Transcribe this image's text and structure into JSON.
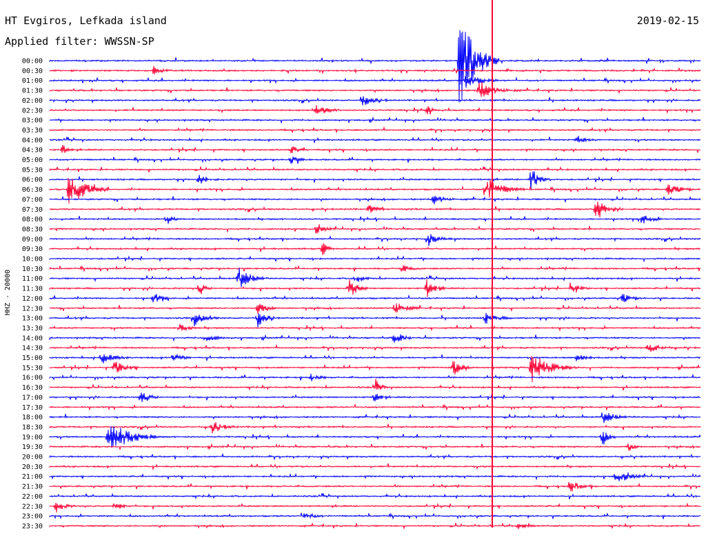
{
  "header": {
    "station": "HT Evgiros, Lefkada island",
    "date": "2019-02-15",
    "filter": "Applied filter: WWSSN-SP"
  },
  "colors": {
    "even": "#0000ff",
    "odd": "#ff0033",
    "frame": "#000000"
  },
  "chart_data": {
    "type": "line",
    "title": "HT Evgiros, Lefkada island",
    "subtitle": "Applied filter: WWSSN-SP",
    "ylabel": "HHZ - 20000",
    "xlabel": "",
    "grid": false,
    "legend": "none",
    "row_minutes": 30,
    "rows": [
      "00:00",
      "00:30",
      "01:00",
      "01:30",
      "02:00",
      "02:30",
      "03:00",
      "03:30",
      "04:00",
      "04:30",
      "05:00",
      "05:30",
      "06:00",
      "06:30",
      "07:00",
      "07:30",
      "08:00",
      "08:30",
      "09:00",
      "09:30",
      "10:00",
      "10:30",
      "11:00",
      "11:30",
      "12:00",
      "12:30",
      "13:00",
      "13:30",
      "14:00",
      "14:30",
      "15:00",
      "15:30",
      "16:00",
      "16:30",
      "17:00",
      "17:30",
      "18:00",
      "18:30",
      "19:00",
      "19:30",
      "20:00",
      "20:30",
      "21:00",
      "21:30",
      "22:00",
      "22:30",
      "23:00",
      "23:30"
    ],
    "series_colors": [
      "#0000ff",
      "#ff0033"
    ],
    "events": [
      {
        "row": 0,
        "t": 0.63,
        "amp": 80,
        "dur": 0.06
      },
      {
        "row": 1,
        "t": 0.16,
        "amp": 6,
        "dur": 0.03
      },
      {
        "row": 2,
        "t": 0.64,
        "amp": 10,
        "dur": 0.05
      },
      {
        "row": 3,
        "t": 0.66,
        "amp": 14,
        "dur": 0.06
      },
      {
        "row": 4,
        "t": 0.48,
        "amp": 9,
        "dur": 0.04
      },
      {
        "row": 5,
        "t": 0.41,
        "amp": 8,
        "dur": 0.04
      },
      {
        "row": 5,
        "t": 0.58,
        "amp": 6,
        "dur": 0.03
      },
      {
        "row": 8,
        "t": 0.81,
        "amp": 6,
        "dur": 0.03
      },
      {
        "row": 9,
        "t": 0.02,
        "amp": 7,
        "dur": 0.02
      },
      {
        "row": 9,
        "t": 0.37,
        "amp": 6,
        "dur": 0.03
      },
      {
        "row": 10,
        "t": 0.37,
        "amp": 7,
        "dur": 0.03
      },
      {
        "row": 12,
        "t": 0.23,
        "amp": 8,
        "dur": 0.03
      },
      {
        "row": 12,
        "t": 0.74,
        "amp": 18,
        "dur": 0.03
      },
      {
        "row": 13,
        "t": 0.03,
        "amp": 28,
        "dur": 0.06
      },
      {
        "row": 13,
        "t": 0.67,
        "amp": 20,
        "dur": 0.06
      },
      {
        "row": 13,
        "t": 0.95,
        "amp": 10,
        "dur": 0.04
      },
      {
        "row": 14,
        "t": 0.59,
        "amp": 8,
        "dur": 0.04
      },
      {
        "row": 15,
        "t": 0.49,
        "amp": 7,
        "dur": 0.03
      },
      {
        "row": 15,
        "t": 0.84,
        "amp": 14,
        "dur": 0.04
      },
      {
        "row": 16,
        "t": 0.18,
        "amp": 8,
        "dur": 0.02
      },
      {
        "row": 16,
        "t": 0.91,
        "amp": 10,
        "dur": 0.03
      },
      {
        "row": 17,
        "t": 0.41,
        "amp": 6,
        "dur": 0.03
      },
      {
        "row": 18,
        "t": 0.58,
        "amp": 9,
        "dur": 0.04
      },
      {
        "row": 19,
        "t": 0.42,
        "amp": 10,
        "dur": 0.02
      },
      {
        "row": 21,
        "t": 0.54,
        "amp": 7,
        "dur": 0.03
      },
      {
        "row": 22,
        "t": 0.29,
        "amp": 16,
        "dur": 0.05
      },
      {
        "row": 22,
        "t": 0.47,
        "amp": 6,
        "dur": 0.03
      },
      {
        "row": 23,
        "t": 0.23,
        "amp": 12,
        "dur": 0.02
      },
      {
        "row": 23,
        "t": 0.46,
        "amp": 16,
        "dur": 0.03
      },
      {
        "row": 23,
        "t": 0.58,
        "amp": 14,
        "dur": 0.03
      },
      {
        "row": 23,
        "t": 0.8,
        "amp": 9,
        "dur": 0.03
      },
      {
        "row": 24,
        "t": 0.16,
        "amp": 8,
        "dur": 0.03
      },
      {
        "row": 24,
        "t": 0.88,
        "amp": 7,
        "dur": 0.03
      },
      {
        "row": 25,
        "t": 0.32,
        "amp": 10,
        "dur": 0.03
      },
      {
        "row": 25,
        "t": 0.53,
        "amp": 12,
        "dur": 0.04
      },
      {
        "row": 26,
        "t": 0.22,
        "amp": 10,
        "dur": 0.04
      },
      {
        "row": 26,
        "t": 0.32,
        "amp": 14,
        "dur": 0.03
      },
      {
        "row": 26,
        "t": 0.67,
        "amp": 8,
        "dur": 0.04
      },
      {
        "row": 27,
        "t": 0.2,
        "amp": 6,
        "dur": 0.03
      },
      {
        "row": 28,
        "t": 0.24,
        "amp": 8,
        "dur": 0.03
      },
      {
        "row": 28,
        "t": 0.53,
        "amp": 10,
        "dur": 0.03
      },
      {
        "row": 29,
        "t": 0.92,
        "amp": 8,
        "dur": 0.04
      },
      {
        "row": 30,
        "t": 0.08,
        "amp": 10,
        "dur": 0.04
      },
      {
        "row": 30,
        "t": 0.19,
        "amp": 8,
        "dur": 0.03
      },
      {
        "row": 30,
        "t": 0.81,
        "amp": 8,
        "dur": 0.03
      },
      {
        "row": 31,
        "t": 0.1,
        "amp": 12,
        "dur": 0.04
      },
      {
        "row": 31,
        "t": 0.62,
        "amp": 14,
        "dur": 0.03
      },
      {
        "row": 31,
        "t": 0.74,
        "amp": 22,
        "dur": 0.07
      },
      {
        "row": 32,
        "t": 0.4,
        "amp": 6,
        "dur": 0.03
      },
      {
        "row": 33,
        "t": 0.5,
        "amp": 10,
        "dur": 0.02
      },
      {
        "row": 34,
        "t": 0.14,
        "amp": 12,
        "dur": 0.03
      },
      {
        "row": 34,
        "t": 0.5,
        "amp": 10,
        "dur": 0.02
      },
      {
        "row": 36,
        "t": 0.85,
        "amp": 9,
        "dur": 0.05
      },
      {
        "row": 37,
        "t": 0.25,
        "amp": 9,
        "dur": 0.04
      },
      {
        "row": 38,
        "t": 0.09,
        "amp": 26,
        "dur": 0.08
      },
      {
        "row": 38,
        "t": 0.85,
        "amp": 14,
        "dur": 0.02
      },
      {
        "row": 39,
        "t": 0.89,
        "amp": 7,
        "dur": 0.02
      },
      {
        "row": 42,
        "t": 0.87,
        "amp": 8,
        "dur": 0.05
      },
      {
        "row": 43,
        "t": 0.8,
        "amp": 8,
        "dur": 0.04
      },
      {
        "row": 45,
        "t": 0.01,
        "amp": 9,
        "dur": 0.03
      },
      {
        "row": 45,
        "t": 0.1,
        "amp": 6,
        "dur": 0.03
      },
      {
        "row": 46,
        "t": 0.39,
        "amp": 7,
        "dur": 0.03
      },
      {
        "row": 47,
        "t": 0.72,
        "amp": 5,
        "dur": 0.03
      }
    ]
  }
}
